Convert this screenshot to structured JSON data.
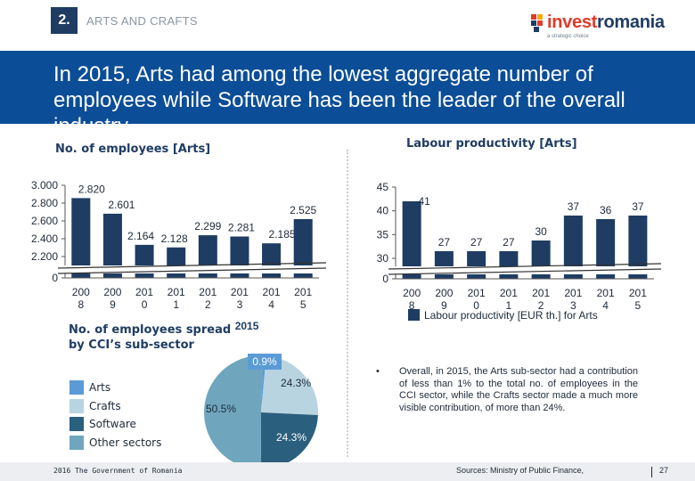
{
  "header": {
    "section_number": "2.",
    "section_title": "ARTS AND CRAFTS",
    "logo_name_part1": "invest",
    "logo_name_part2": "romania",
    "logo_tagline": "a strategic choice"
  },
  "banner": {
    "headline": "In 2015, Arts had among the lowest aggregate number of employees while Software has been the leader of the overall industry"
  },
  "colors": {
    "navy": "#1f3c63",
    "arts": "#5b9bd5",
    "crafts": "#b9d4e1",
    "software": "#2b5f7e",
    "other": "#6fa6bd",
    "banner": "#0b4d97"
  },
  "chart_data": [
    {
      "type": "bar",
      "title": "No. of employees [Arts]",
      "categories": [
        "2008",
        "2009",
        "2010",
        "2011",
        "2012",
        "2013",
        "2014",
        "2015"
      ],
      "category_labels": [
        [
          "200",
          "8"
        ],
        [
          "200",
          "9"
        ],
        [
          "201",
          "0"
        ],
        [
          "201",
          "1"
        ],
        [
          "201",
          "2"
        ],
        [
          "201",
          "3"
        ],
        [
          "201",
          "4"
        ],
        [
          "201",
          "5"
        ]
      ],
      "values": [
        2820,
        2601,
        2164,
        2128,
        2299,
        2281,
        2185,
        2525
      ],
      "value_labels": [
        "2.820",
        "2.601",
        "2.164",
        "2.128",
        "2.299",
        "2.281",
        "2.185",
        "2.525"
      ],
      "y_ticks": [
        "3.000",
        "2.800",
        "2.600",
        "2.400",
        "2.200",
        "0"
      ],
      "ylim": [
        2000,
        3000
      ],
      "axis_break": true
    },
    {
      "type": "bar",
      "title": "Labour productivity [Arts]",
      "categories": [
        "2008",
        "2009",
        "2010",
        "2011",
        "2012",
        "2013",
        "2014",
        "2015"
      ],
      "category_labels": [
        [
          "200",
          "8"
        ],
        [
          "200",
          "9"
        ],
        [
          "201",
          "0"
        ],
        [
          "201",
          "1"
        ],
        [
          "201",
          "2"
        ],
        [
          "201",
          "3"
        ],
        [
          "201",
          "4"
        ],
        [
          "201",
          "5"
        ]
      ],
      "series": [
        {
          "name": "Labour productivity [EUR th.] for Arts",
          "values": [
            41,
            27,
            27,
            27,
            30,
            37,
            36,
            37
          ]
        }
      ],
      "value_labels": [
        "41",
        "27",
        "27",
        "27",
        "30",
        "37",
        "36",
        "37"
      ],
      "y_ticks": [
        "45",
        "40",
        "35",
        "30",
        "0"
      ],
      "ylim": [
        25,
        45
      ],
      "axis_break": true,
      "legend": "bottom"
    },
    {
      "type": "pie",
      "title": "No. of employees spread 2015 by CCI’s sub-sector",
      "title_line1": "No. of employees spread",
      "title_year": "2015",
      "title_line2": "by CCI’s sub-sector",
      "labels": [
        "Arts",
        "Crafts",
        "Software",
        "Other sectors"
      ],
      "values": [
        0.9,
        24.3,
        24.3,
        50.5
      ],
      "value_labels": [
        "0.9%",
        "24.3%",
        "24.3%",
        "50.5%"
      ],
      "legend": "left"
    }
  ],
  "bullet": {
    "marker": "•",
    "text": "Overall, in 2015, the Arts sub-sector had a contribution of less than 1% to the total no. of employees in the CCI sector, while the Crafts sector made a much more visible contribution, of more than 24%."
  },
  "footer": {
    "left": "2016 The Government of Romania",
    "sources": "Sources: Ministry of Public Finance,",
    "page": "27"
  }
}
